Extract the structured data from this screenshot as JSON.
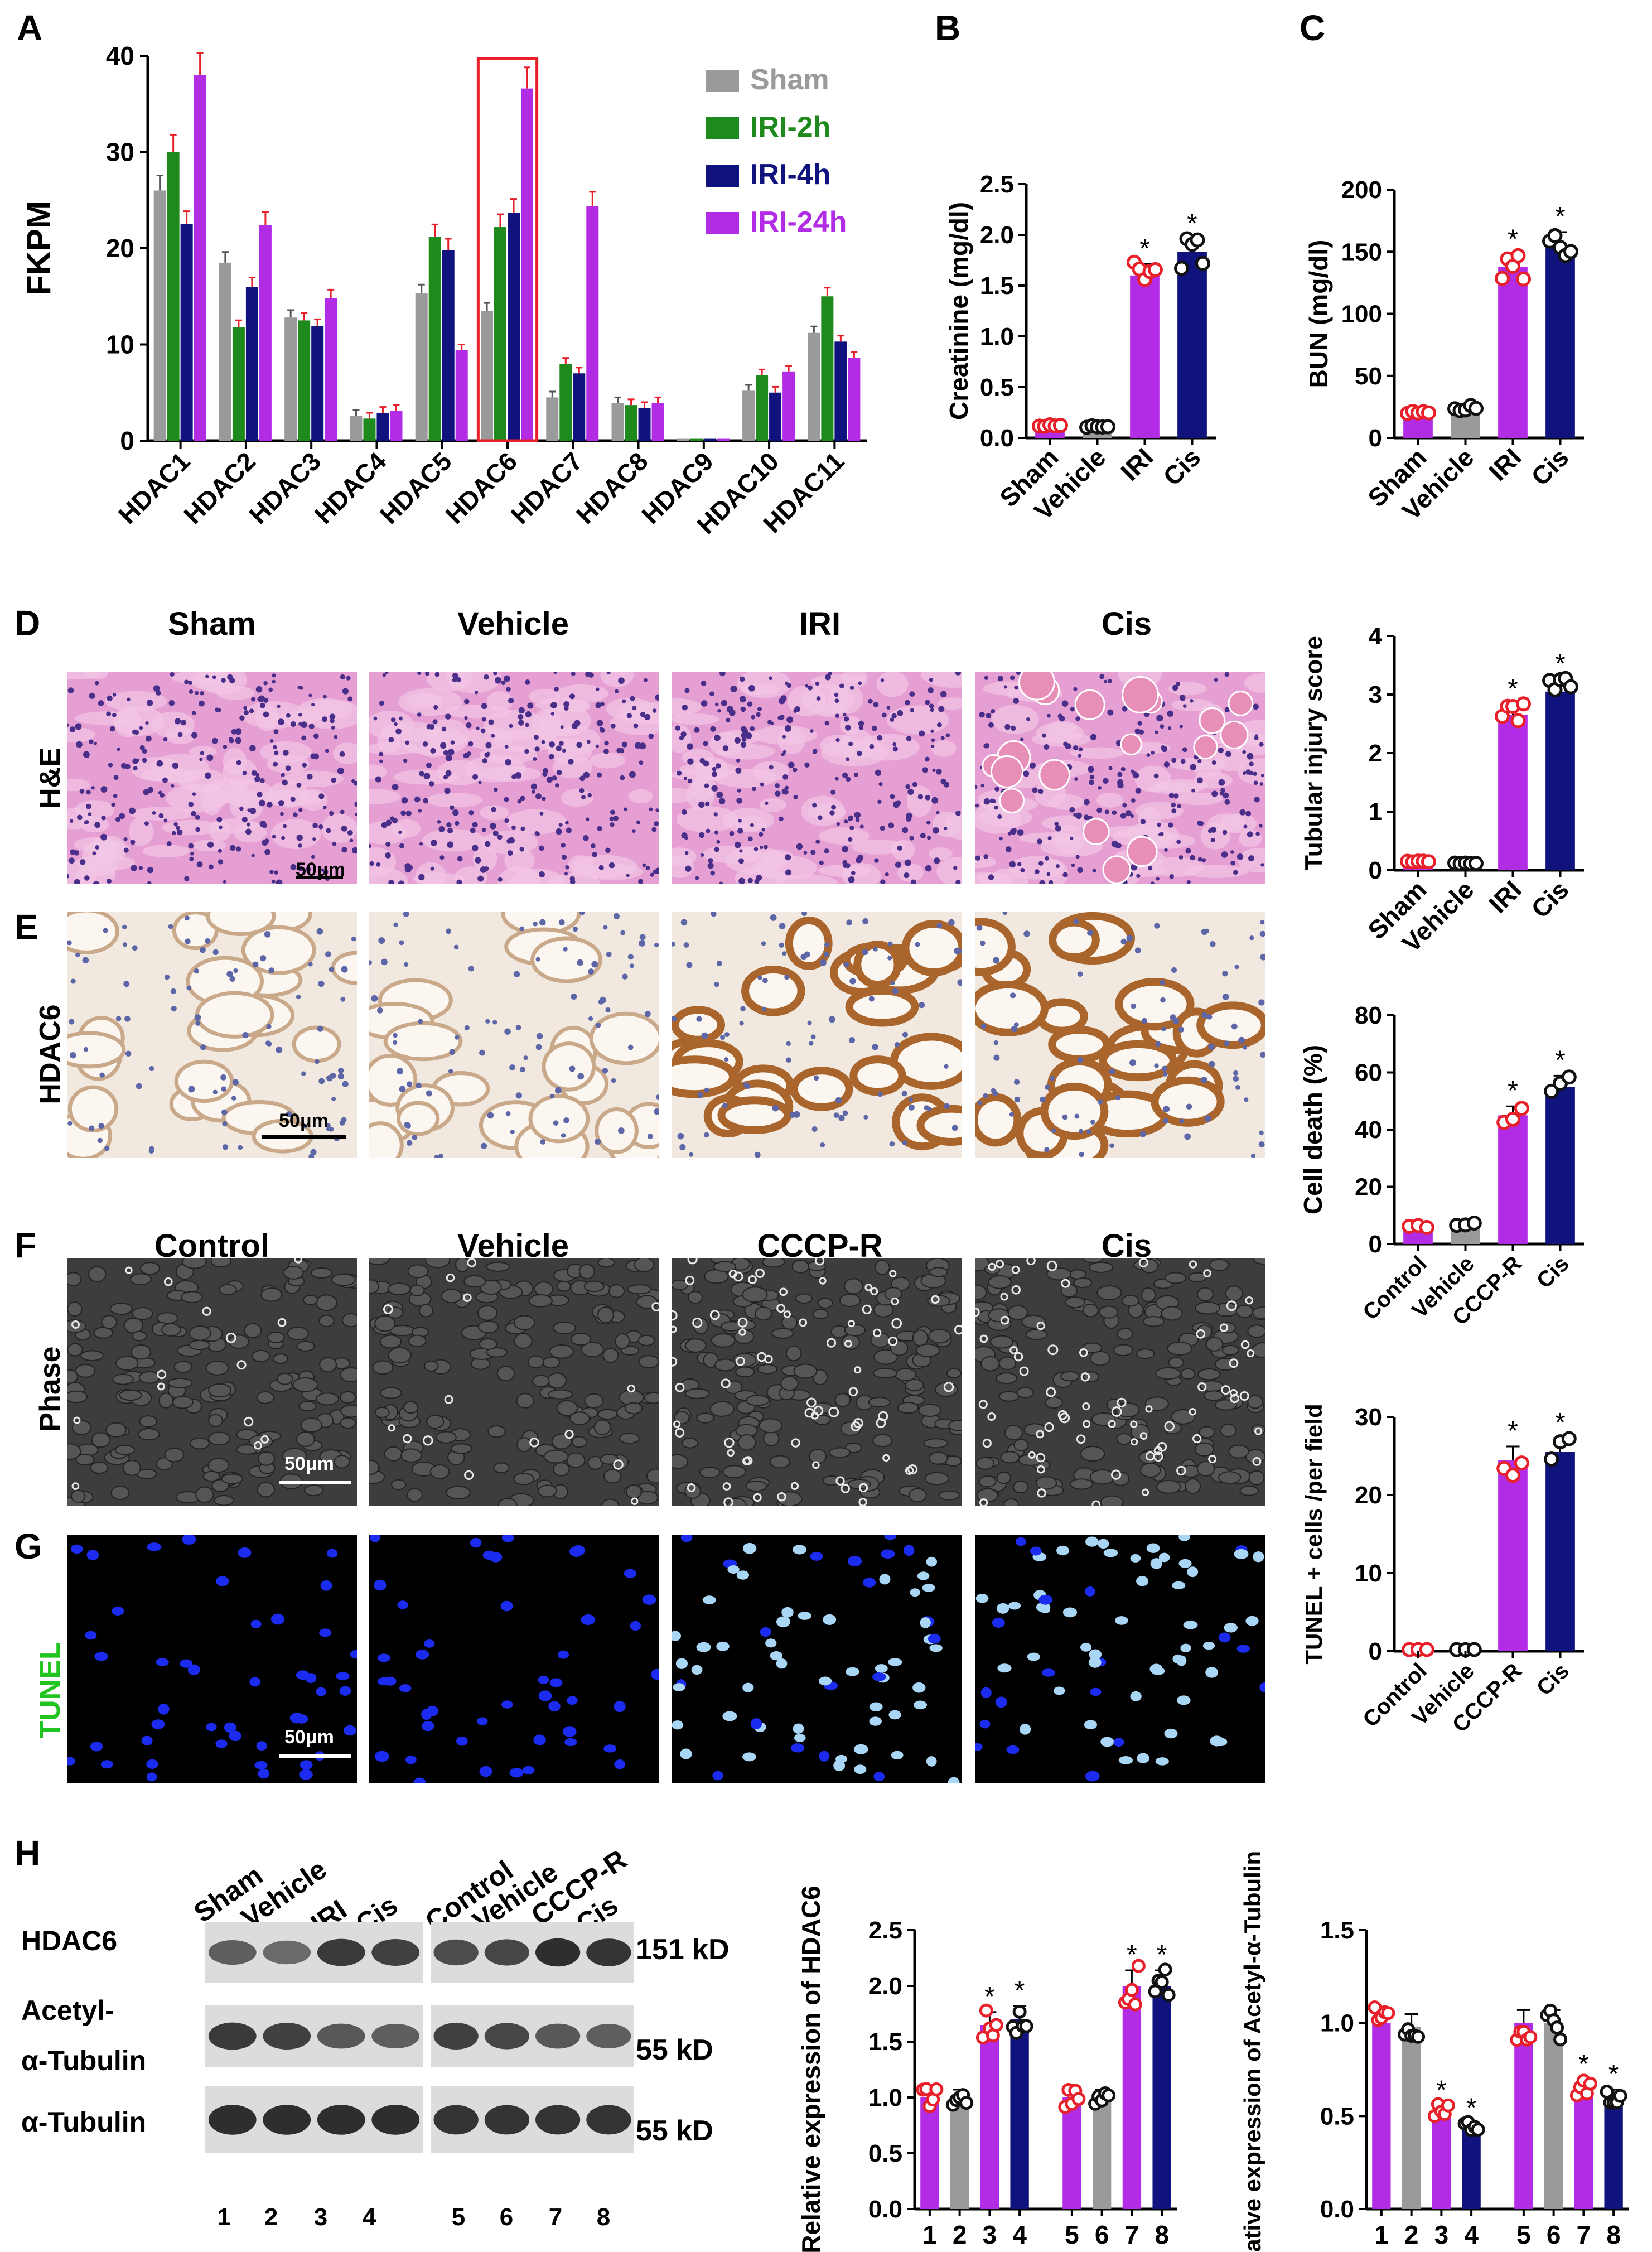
{
  "panel_labels": {
    "A": "A",
    "B": "B",
    "C": "C",
    "D": "D",
    "E": "E",
    "F": "F",
    "G": "G",
    "H": "H"
  },
  "colors": {
    "sham": "#9a9a9a",
    "iri2h": "#1e8a1e",
    "iri4h": "#10127e",
    "iri24h": "#b22ce6",
    "red_marker": "#e8202a",
    "he_tissue": "#d98ac8",
    "hdac6_tissue": "#e8d9c8",
    "phase_bg": "#3a3a3a",
    "tunel_bg": "#000000",
    "tunel_nuclei": "#1b2cf0",
    "legend_sham": "#9a9a9a",
    "legend_2h": "#1e8a1e",
    "legend_4h": "#10127e",
    "legend_24h": "#b22ce6"
  },
  "tissue_groups": [
    "Sham",
    "Vehicle",
    "IRI",
    "Cis"
  ],
  "cell_groups": [
    "Control",
    "Vehicle",
    "CCCP-R",
    "Cis"
  ],
  "row_labels": {
    "he": "H&E",
    "hdac6": "HDAC6",
    "phase": "Phase",
    "tunel": "TUNEL"
  },
  "scale_bar": "50μm",
  "western": {
    "group1": [
      "Sham",
      "Vehicle",
      "IRI",
      "Cis"
    ],
    "group2": [
      "Control",
      "Vehicle",
      "CCCP-R",
      "Cis"
    ],
    "rows": [
      "HDAC6",
      "Acetyl-",
      "α-Tubulin",
      "α-Tubulin"
    ],
    "sizes": [
      "151 kD",
      "55 kD",
      "55 kD"
    ],
    "lanes": [
      "1",
      "2",
      "3",
      "4",
      "5",
      "6",
      "7",
      "8"
    ]
  },
  "chart_data": [
    {
      "panel": "A",
      "type": "bar",
      "ylabel": "FKPM",
      "ylim": [
        0,
        40
      ],
      "yticks": [
        0,
        10,
        20,
        30,
        40
      ],
      "categories": [
        "HDAC1",
        "HDAC2",
        "HDAC3",
        "HDAC4",
        "HDAC5",
        "HDAC6",
        "HDAC7",
        "HDAC8",
        "HDAC9",
        "HDAC10",
        "HDAC11"
      ],
      "series": [
        {
          "name": "Sham",
          "values": [
            26,
            18.5,
            12.8,
            2.6,
            15.3,
            13.5,
            4.5,
            3.9,
            0.2,
            5.2,
            11.2
          ]
        },
        {
          "name": "IRI-2h",
          "values": [
            30,
            11.8,
            12.5,
            2.3,
            21.2,
            22.2,
            8.0,
            3.7,
            0.2,
            6.8,
            15.0
          ]
        },
        {
          "name": "IRI-4h",
          "values": [
            22.5,
            16.0,
            11.9,
            2.9,
            19.8,
            23.7,
            7.0,
            3.4,
            0.2,
            5.0,
            10.3
          ]
        },
        {
          "name": "IRI-24h",
          "values": [
            38,
            22.4,
            14.8,
            3.1,
            9.4,
            36.6,
            24.4,
            3.9,
            0.2,
            7.2,
            8.6
          ]
        }
      ],
      "highlight": "HDAC6"
    },
    {
      "panel": "B",
      "type": "bar",
      "ylabel": "Creatinine (mg/dl)",
      "ylim": [
        0,
        2.5
      ],
      "yticks": [
        "0.0",
        "0.5",
        "1.0",
        "1.5",
        "2.0",
        "2.5"
      ],
      "categories": [
        "Sham",
        "Vehicle",
        "IRI",
        "Cis"
      ],
      "values": [
        0.12,
        0.11,
        1.6,
        1.83
      ],
      "significance": [
        "",
        "",
        "*",
        "*"
      ]
    },
    {
      "panel": "C",
      "type": "bar",
      "ylabel": "BUN (mg/dl)",
      "ylim": [
        0,
        200
      ],
      "yticks": [
        "0",
        "50",
        "100",
        "150",
        "200"
      ],
      "categories": [
        "Sham",
        "Vehicle",
        "IRI",
        "Cis"
      ],
      "values": [
        20,
        24,
        138,
        155
      ],
      "significance": [
        "",
        "",
        "*",
        "*"
      ]
    },
    {
      "panel": "D",
      "type": "bar",
      "ylabel": "Tubular injury score",
      "ylim": [
        0,
        4
      ],
      "yticks": [
        "0",
        "1",
        "2",
        "3",
        "4"
      ],
      "categories": [
        "Sham",
        "Vehicle",
        "IRI",
        "Cis"
      ],
      "values": [
        0.15,
        0.12,
        2.65,
        3.05
      ],
      "significance": [
        "",
        "",
        "*",
        "*"
      ]
    },
    {
      "panel": "F",
      "type": "bar",
      "ylabel": "Cell death (%)",
      "ylim": [
        0,
        80
      ],
      "yticks": [
        "0",
        "20",
        "40",
        "60",
        "80"
      ],
      "categories": [
        "Control",
        "Vehicle",
        "CCCP-R",
        "Cis"
      ],
      "values": [
        6,
        7,
        45,
        55
      ],
      "significance": [
        "",
        "",
        "*",
        "*"
      ]
    },
    {
      "panel": "G",
      "type": "bar",
      "ylabel": "TUNEL + cells /per field",
      "ylim": [
        0,
        30
      ],
      "yticks": [
        "0",
        "10",
        "20",
        "30"
      ],
      "categories": [
        "Control",
        "Vehicle",
        "CCCP-R",
        "Cis"
      ],
      "values": [
        0.2,
        0.2,
        24.5,
        25.5
      ],
      "significance": [
        "",
        "",
        "*",
        "*"
      ]
    },
    {
      "panel": "H1",
      "type": "bar",
      "ylabel": "Relative expression of HDAC6",
      "ylim": [
        0,
        2.5
      ],
      "yticks": [
        "0.0",
        "0.5",
        "1.0",
        "1.5",
        "2.0",
        "2.5"
      ],
      "categories": [
        "1",
        "2",
        "3",
        "4",
        "5",
        "6",
        "7",
        "8"
      ],
      "values": [
        1.0,
        1.0,
        1.65,
        1.7,
        1.0,
        1.0,
        2.0,
        2.0
      ],
      "significance": [
        "",
        "",
        "*",
        "*",
        "",
        "",
        "*",
        "*"
      ]
    },
    {
      "panel": "H2",
      "type": "bar",
      "ylabel": "Relative expression of Acetyl-α-Tubulin",
      "ylim": [
        0,
        1.5
      ],
      "yticks": [
        "0.0",
        "0.5",
        "1.0",
        "1.5"
      ],
      "categories": [
        "1",
        "2",
        "3",
        "4",
        "5",
        "6",
        "7",
        "8"
      ],
      "values": [
        1.0,
        0.98,
        0.52,
        0.43,
        1.0,
        1.0,
        0.65,
        0.6
      ],
      "significance": [
        "",
        "",
        "*",
        "*",
        "",
        "",
        "*",
        "*"
      ]
    }
  ]
}
